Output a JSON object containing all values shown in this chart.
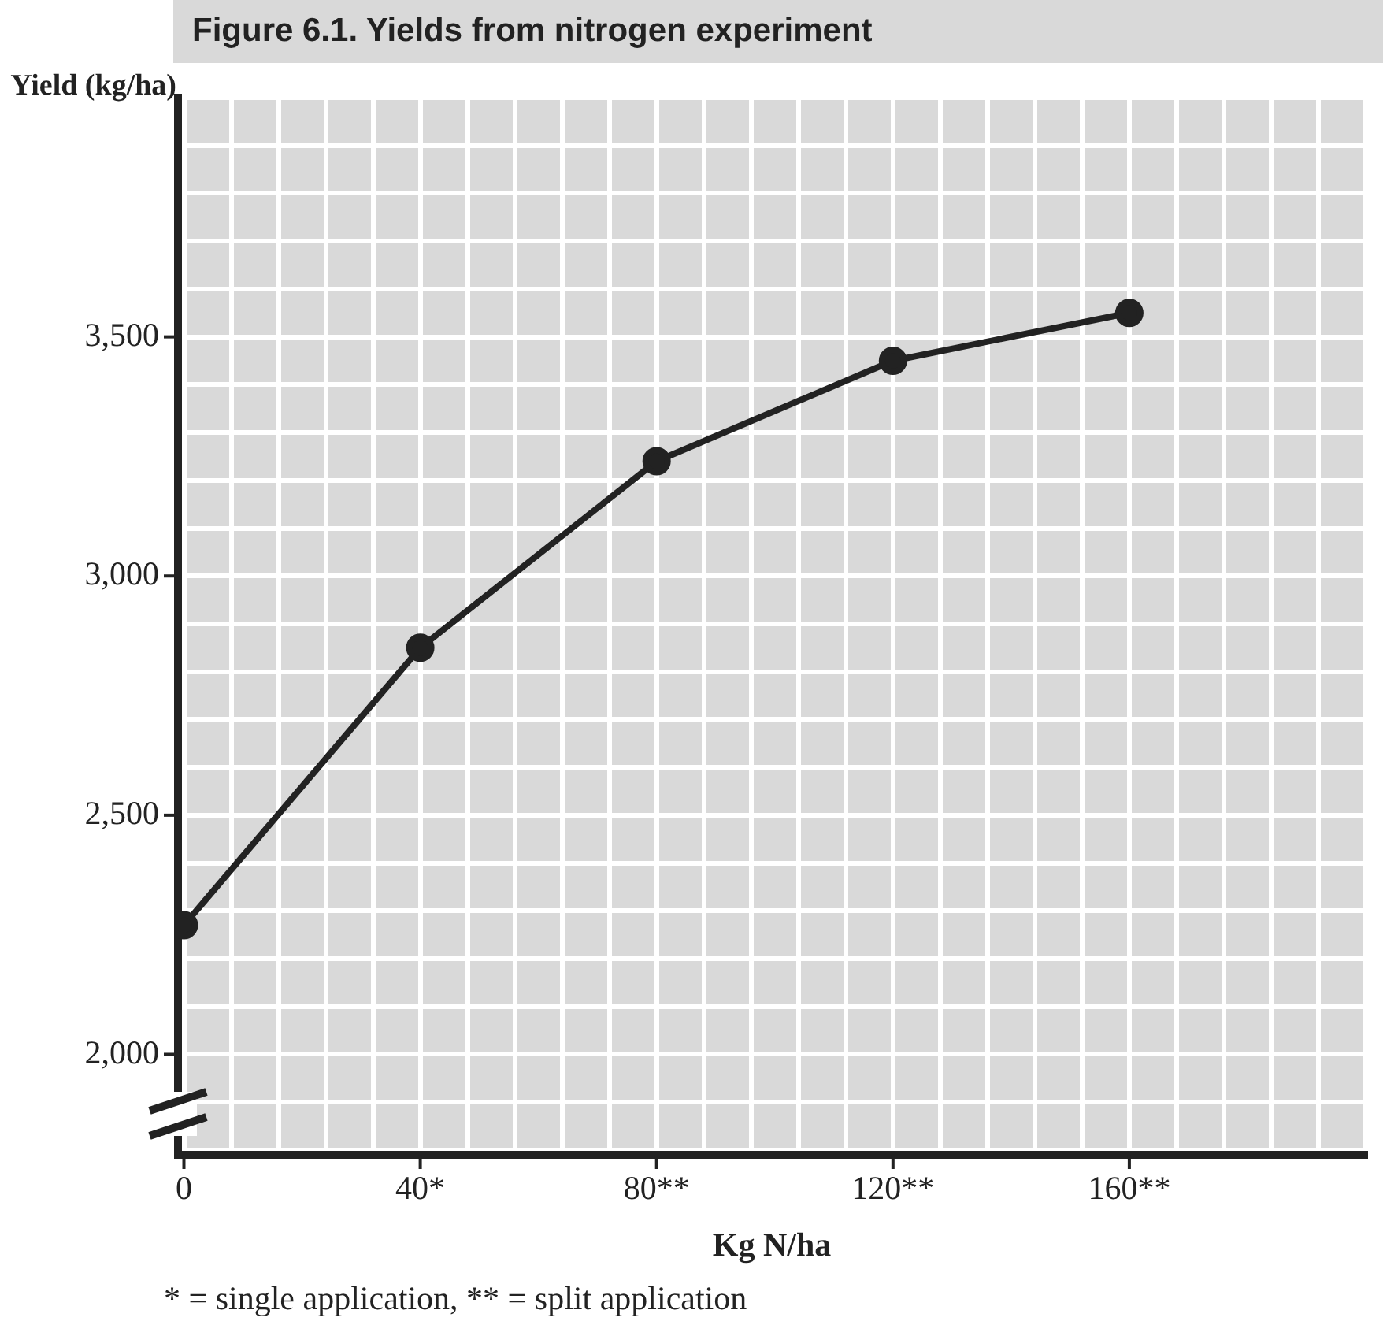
{
  "chart_data": {
    "type": "line",
    "title": "Figure 6.1. Yields from nitrogen experiment",
    "xlabel": "Kg N/ha",
    "ylabel": "Yield (kg/ha)",
    "annotations": [
      "* = single application, ** = split application"
    ],
    "x": [
      0,
      40,
      80,
      120,
      160
    ],
    "series": [
      {
        "color": "#222222",
        "values": [
          2270,
          2850,
          3240,
          3450,
          3550
        ]
      }
    ],
    "xlim": [
      -1,
      200
    ],
    "ylim": [
      1790,
      4000
    ],
    "xticks": [
      {
        "value": 0,
        "label": "0"
      },
      {
        "value": 8,
        "label": null
      },
      {
        "value": 16,
        "label": null
      },
      {
        "value": 24,
        "label": null
      },
      {
        "value": 32,
        "label": null
      },
      {
        "value": 40,
        "label": "40*"
      },
      {
        "value": 48,
        "label": null
      },
      {
        "value": 56,
        "label": null
      },
      {
        "value": 64,
        "label": null
      },
      {
        "value": 72,
        "label": null
      },
      {
        "value": 80,
        "label": "80**"
      },
      {
        "value": 88,
        "label": null
      },
      {
        "value": 96,
        "label": null
      },
      {
        "value": 104,
        "label": null
      },
      {
        "value": 112,
        "label": null
      },
      {
        "value": 120,
        "label": "120**"
      },
      {
        "value": 128,
        "label": null
      },
      {
        "value": 136,
        "label": null
      },
      {
        "value": 144,
        "label": null
      },
      {
        "value": 152,
        "label": null
      },
      {
        "value": 160,
        "label": "160**"
      },
      {
        "value": 168,
        "label": null
      },
      {
        "value": 176,
        "label": null
      },
      {
        "value": 184,
        "label": null
      },
      {
        "value": 192,
        "label": null
      },
      {
        "value": 200,
        "label": null
      }
    ],
    "yticks": [
      {
        "value": 1800,
        "label": null
      },
      {
        "value": 1900,
        "label": null
      },
      {
        "value": 2000,
        "label": "2,000"
      },
      {
        "value": 2100,
        "label": null
      },
      {
        "value": 2200,
        "label": null
      },
      {
        "value": 2300,
        "label": null
      },
      {
        "value": 2400,
        "label": null
      },
      {
        "value": 2500,
        "label": "2,500"
      },
      {
        "value": 2600,
        "label": null
      },
      {
        "value": 2700,
        "label": null
      },
      {
        "value": 2800,
        "label": null
      },
      {
        "value": 2900,
        "label": null
      },
      {
        "value": 3000,
        "label": "3,000"
      },
      {
        "value": 3100,
        "label": null
      },
      {
        "value": 3200,
        "label": null
      },
      {
        "value": 3300,
        "label": null
      },
      {
        "value": 3400,
        "label": null
      },
      {
        "value": 3500,
        "label": "3,500"
      },
      {
        "value": 3600,
        "label": null
      },
      {
        "value": 3700,
        "label": null
      },
      {
        "value": 3800,
        "label": null
      },
      {
        "value": 3900,
        "label": null
      },
      {
        "value": 4000,
        "label": null
      }
    ],
    "grid": true,
    "marker": "circle",
    "line_style": "solid"
  }
}
